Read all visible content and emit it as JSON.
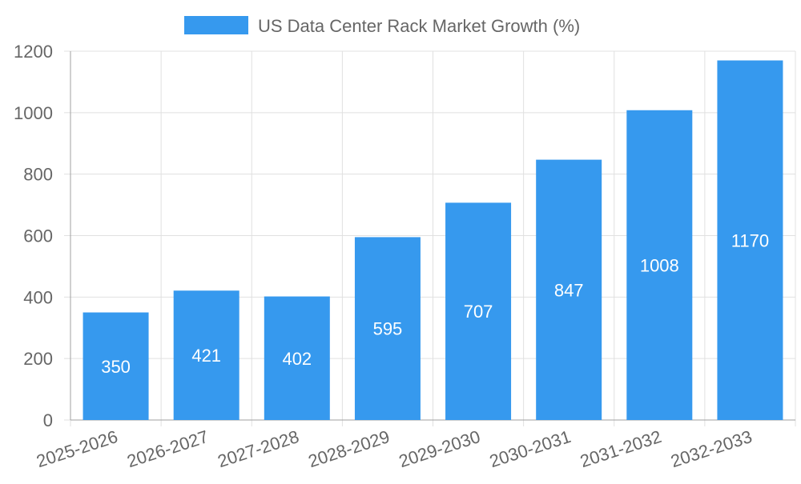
{
  "chart_data": {
    "type": "bar",
    "categories": [
      "2025-2026",
      "2026-2027",
      "2027-2028",
      "2028-2029",
      "2029-2030",
      "2030-2031",
      "2031-2032",
      "2032-2033"
    ],
    "series": [
      {
        "name": "US Data Center Rack Market  Growth (%)",
        "values": [
          350,
          421,
          402,
          595,
          707,
          847,
          1008,
          1170
        ],
        "color": "#3699ee"
      }
    ],
    "ylim": [
      0,
      1200
    ],
    "yticks": [
      0,
      200,
      400,
      600,
      800,
      1000,
      1200
    ],
    "grid": true,
    "legend_position": "top",
    "data_labels": true,
    "label_color": "#ffffff",
    "axis_text_color": "#666666",
    "grid_color": "#e0e0e0",
    "axis_color": "#a0a0a0"
  }
}
